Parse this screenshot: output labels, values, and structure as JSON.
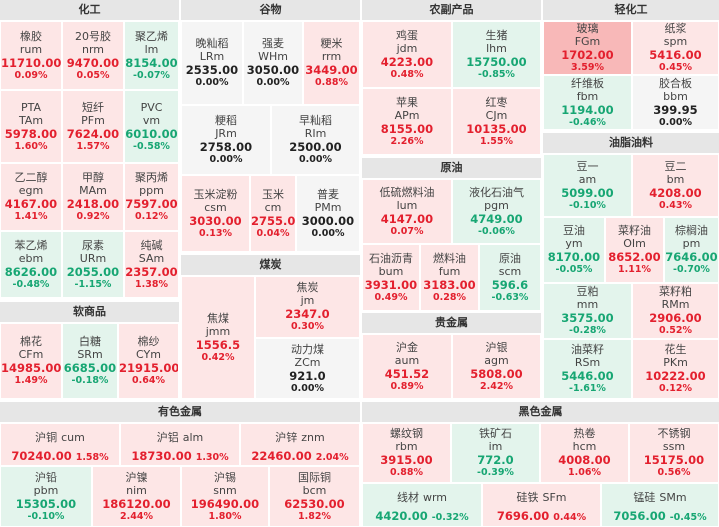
{
  "sections": {
    "chem": {
      "title": "化工",
      "tiles": [
        {
          "cn": "橡胶",
          "code": "rum",
          "price": "11710.00",
          "pct": "0.09%",
          "dir": "up"
        },
        {
          "cn": "20号胶",
          "code": "nrm",
          "price": "9470.00",
          "pct": "0.05%",
          "dir": "up"
        },
        {
          "cn": "聚乙烯",
          "code": "lm",
          "price": "8154.00",
          "pct": "-0.07%",
          "dir": "dn"
        },
        {
          "cn": "PTA",
          "code": "TAm",
          "price": "5978.00",
          "pct": "1.60%",
          "dir": "up"
        },
        {
          "cn": "短纤",
          "code": "PFm",
          "price": "7624.00",
          "pct": "1.57%",
          "dir": "up"
        },
        {
          "cn": "PVC",
          "code": "vm",
          "price": "6010.00",
          "pct": "-0.58%",
          "dir": "dn"
        },
        {
          "cn": "乙二醇",
          "code": "egm",
          "price": "4167.00",
          "pct": "1.41%",
          "dir": "up"
        },
        {
          "cn": "甲醇",
          "code": "MAm",
          "price": "2418.00",
          "pct": "0.92%",
          "dir": "up"
        },
        {
          "cn": "聚丙烯",
          "code": "ppm",
          "price": "7597.00",
          "pct": "0.12%",
          "dir": "up"
        },
        {
          "cn": "苯乙烯",
          "code": "ebm",
          "price": "8626.00",
          "pct": "-0.48%",
          "dir": "dn"
        },
        {
          "cn": "尿素",
          "code": "URm",
          "price": "2055.00",
          "pct": "-1.15%",
          "dir": "dn"
        },
        {
          "cn": "纯碱",
          "code": "SAm",
          "price": "2357.00",
          "pct": "1.38%",
          "dir": "up"
        }
      ]
    },
    "soft": {
      "title": "软商品",
      "tiles": [
        {
          "cn": "棉花",
          "code": "CFm",
          "price": "14985.00",
          "pct": "1.49%",
          "dir": "up"
        },
        {
          "cn": "白糖",
          "code": "SRm",
          "price": "6685.00",
          "pct": "-0.18%",
          "dir": "dn"
        },
        {
          "cn": "棉纱",
          "code": "CYm",
          "price": "21915.00",
          "pct": "0.64%",
          "dir": "up"
        }
      ]
    },
    "grain": {
      "title": "谷物",
      "tiles": [
        {
          "cn": "晚籼稻",
          "code": "LRm",
          "price": "2535.00",
          "pct": "0.00%",
          "dir": "fl"
        },
        {
          "cn": "强麦",
          "code": "WHm",
          "price": "3050.00",
          "pct": "0.00%",
          "dir": "fl"
        },
        {
          "cn": "粳米",
          "code": "rrm",
          "price": "3449.00",
          "pct": "0.88%",
          "dir": "up"
        },
        {
          "cn": "粳稻",
          "code": "JRm",
          "price": "2758.00",
          "pct": "0.00%",
          "dir": "fl"
        },
        {
          "cn": "早籼稻",
          "code": "RIm",
          "price": "2500.00",
          "pct": "0.00%",
          "dir": "fl"
        },
        {
          "cn": "玉米淀粉",
          "code": "csm",
          "price": "3030.00",
          "pct": "0.13%",
          "dir": "up"
        },
        {
          "cn": "玉米",
          "code": "cm",
          "price": "2755.00",
          "pct": "0.04%",
          "dir": "up"
        },
        {
          "cn": "普麦",
          "code": "PMm",
          "price": "3000.00",
          "pct": "0.00%",
          "dir": "fl"
        }
      ]
    },
    "coal": {
      "title": "煤炭",
      "tiles": [
        {
          "cn": "焦煤",
          "code": "jmm",
          "price": "1556.5",
          "pct": "0.42%",
          "dir": "up"
        },
        {
          "cn": "焦炭",
          "code": "jm",
          "price": "2347.0",
          "pct": "0.30%",
          "dir": "up"
        },
        {
          "cn": "动力煤",
          "code": "ZCm",
          "price": "921.0",
          "pct": "0.00%",
          "dir": "fl"
        }
      ]
    },
    "agri": {
      "title": "农副产品",
      "tiles": [
        {
          "cn": "鸡蛋",
          "code": "jdm",
          "price": "4223.00",
          "pct": "0.48%",
          "dir": "up"
        },
        {
          "cn": "生猪",
          "code": "lhm",
          "price": "15750.00",
          "pct": "-0.85%",
          "dir": "dn"
        },
        {
          "cn": "苹果",
          "code": "APm",
          "price": "8155.00",
          "pct": "2.26%",
          "dir": "up"
        },
        {
          "cn": "红枣",
          "code": "CJm",
          "price": "10135.00",
          "pct": "1.55%",
          "dir": "up"
        }
      ]
    },
    "oil": {
      "title": "原油",
      "tiles": [
        {
          "cn": "低硫燃料油",
          "code": "lum",
          "price": "4147.00",
          "pct": "0.07%",
          "dir": "up"
        },
        {
          "cn": "液化石油气",
          "code": "pgm",
          "price": "4749.00",
          "pct": "-0.06%",
          "dir": "dn"
        },
        {
          "cn": "石油沥青",
          "code": "bum",
          "price": "3931.00",
          "pct": "0.49%",
          "dir": "up"
        },
        {
          "cn": "燃料油",
          "code": "fum",
          "price": "3183.00",
          "pct": "0.28%",
          "dir": "up"
        },
        {
          "cn": "原油",
          "code": "scm",
          "price": "596.6",
          "pct": "-0.63%",
          "dir": "dn"
        }
      ]
    },
    "precious": {
      "title": "贵金属",
      "tiles": [
        {
          "cn": "沪金",
          "code": "aum",
          "price": "451.52",
          "pct": "0.89%",
          "dir": "up"
        },
        {
          "cn": "沪银",
          "code": "agm",
          "price": "5808.00",
          "pct": "2.42%",
          "dir": "up"
        }
      ]
    },
    "light": {
      "title": "轻化工",
      "tiles": [
        {
          "cn": "玻璃",
          "code": "FGm",
          "price": "1702.00",
          "pct": "3.59%",
          "dir": "up3"
        },
        {
          "cn": "纸浆",
          "code": "spm",
          "price": "5416.00",
          "pct": "0.45%",
          "dir": "up"
        },
        {
          "cn": "纤维板",
          "code": "fbm",
          "price": "1194.00",
          "pct": "-0.46%",
          "dir": "dn"
        },
        {
          "cn": "胶合板",
          "code": "bbm",
          "price": "399.95",
          "pct": "0.00%",
          "dir": "fl"
        }
      ]
    },
    "oilseed": {
      "title": "油脂油料",
      "tiles": [
        {
          "cn": "豆一",
          "code": "am",
          "price": "5099.00",
          "pct": "-0.10%",
          "dir": "dn"
        },
        {
          "cn": "豆二",
          "code": "bm",
          "price": "4208.00",
          "pct": "0.43%",
          "dir": "up"
        },
        {
          "cn": "豆油",
          "code": "ym",
          "price": "8170.00",
          "pct": "-0.05%",
          "dir": "dn"
        },
        {
          "cn": "菜籽油",
          "code": "OIm",
          "price": "8652.00",
          "pct": "1.11%",
          "dir": "up"
        },
        {
          "cn": "棕榈油",
          "code": "pm",
          "price": "7646.00",
          "pct": "-0.70%",
          "dir": "dn"
        },
        {
          "cn": "豆粕",
          "code": "mm",
          "price": "3575.00",
          "pct": "-0.28%",
          "dir": "dn"
        },
        {
          "cn": "菜籽粕",
          "code": "RMm",
          "price": "2906.00",
          "pct": "0.52%",
          "dir": "up"
        },
        {
          "cn": "油菜籽",
          "code": "RSm",
          "price": "5446.00",
          "pct": "-1.61%",
          "dir": "dn"
        },
        {
          "cn": "花生",
          "code": "PKm",
          "price": "10222.00",
          "pct": "0.12%",
          "dir": "up"
        }
      ]
    },
    "nonferrous": {
      "title": "有色金属",
      "tiles": [
        {
          "cn": "沪铜",
          "code": "cum",
          "price": "70240.00",
          "pct": "1.58%",
          "dir": "up"
        },
        {
          "cn": "沪铝",
          "code": "alm",
          "price": "18730.00",
          "pct": "1.30%",
          "dir": "up"
        },
        {
          "cn": "沪锌",
          "code": "znm",
          "price": "22460.00",
          "pct": "2.04%",
          "dir": "up"
        },
        {
          "cn": "沪铅",
          "code": "pbm",
          "price": "15305.00",
          "pct": "-0.10%",
          "dir": "dn"
        },
        {
          "cn": "沪镍",
          "code": "nim",
          "price": "186120.00",
          "pct": "2.44%",
          "dir": "up"
        },
        {
          "cn": "沪锡",
          "code": "snm",
          "price": "196490.00",
          "pct": "1.80%",
          "dir": "up"
        },
        {
          "cn": "国际铜",
          "code": "bcm",
          "price": "62530.00",
          "pct": "1.82%",
          "dir": "up"
        }
      ]
    },
    "ferrous": {
      "title": "黑色金属",
      "tiles": [
        {
          "cn": "螺纹钢",
          "code": "rbm",
          "price": "3915.00",
          "pct": "0.88%",
          "dir": "up"
        },
        {
          "cn": "铁矿石",
          "code": "im",
          "price": "772.0",
          "pct": "-0.39%",
          "dir": "dn"
        },
        {
          "cn": "热卷",
          "code": "hcm",
          "price": "4008.00",
          "pct": "1.06%",
          "dir": "up"
        },
        {
          "cn": "不锈钢",
          "code": "ssm",
          "price": "15175.00",
          "pct": "0.56%",
          "dir": "up"
        },
        {
          "cn": "线材",
          "code": "wrm",
          "price": "4420.00",
          "pct": "-0.32%",
          "dir": "dn"
        },
        {
          "cn": "硅铁",
          "code": "SFm",
          "price": "7696.00",
          "pct": "0.44%",
          "dir": "up"
        },
        {
          "cn": "锰硅",
          "code": "SMm",
          "price": "7056.00",
          "pct": "-0.45%",
          "dir": "dn"
        }
      ]
    }
  }
}
